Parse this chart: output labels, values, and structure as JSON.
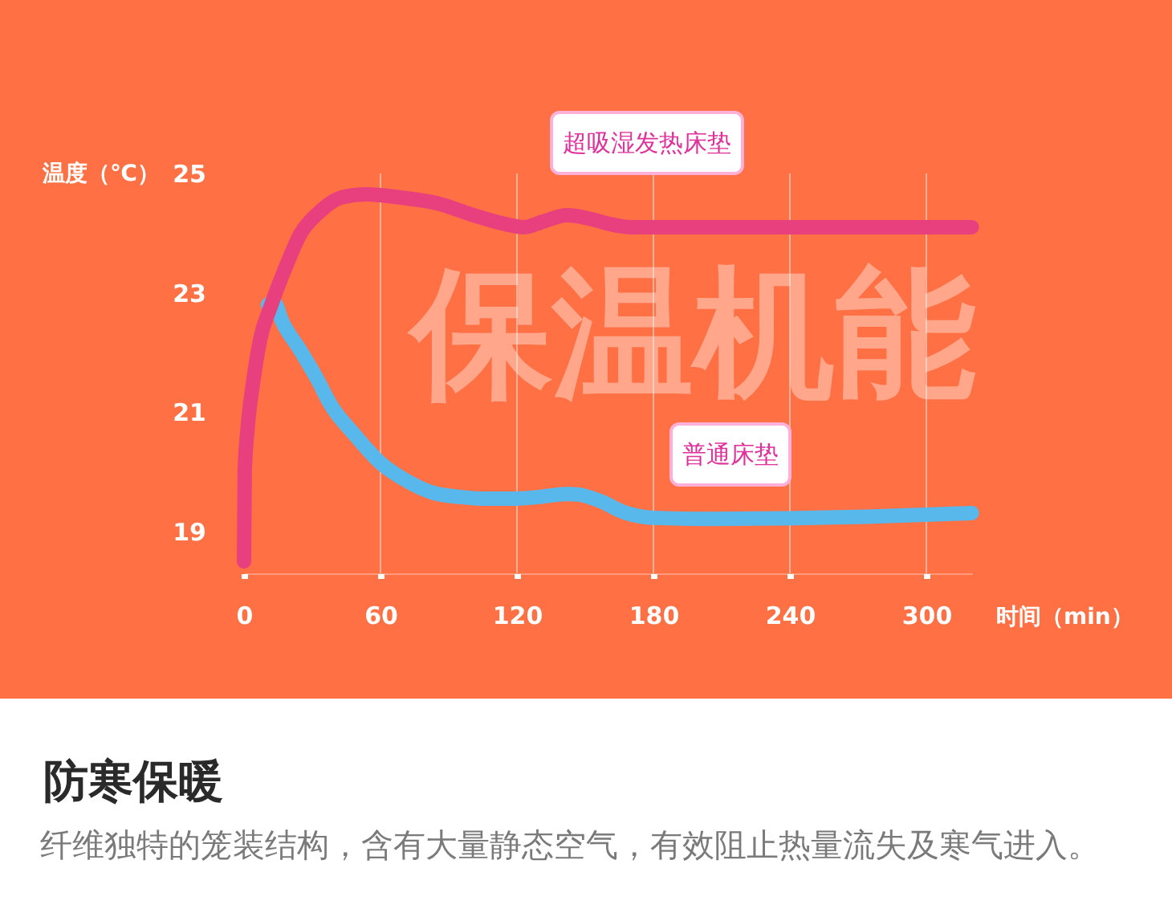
{
  "chart_data": {
    "type": "line",
    "title": "防寒保暖",
    "subtitle": "纤维独特的笼装结构，含有大量静态空气，有效阻止热量流失及寒气进入。",
    "annotations": [
      "保温机能"
    ],
    "xlabel": "时间（min）",
    "ylabel": "温度（℃）",
    "xlim": [
      0,
      320
    ],
    "ylim": [
      18.3,
      25
    ],
    "xticks": [
      0,
      60,
      120,
      180,
      240,
      300
    ],
    "yticks": [
      19,
      21,
      23,
      25
    ],
    "grid": "x",
    "line_style": "solid",
    "series": [
      {
        "name": "超吸湿发热床垫",
        "color": "#e8407f",
        "x": [
          0,
          0.3,
          1.5,
          4,
          7,
          12,
          18,
          25,
          33,
          43,
          54,
          68,
          85,
          101,
          115,
          123,
          132,
          142,
          151,
          161,
          170,
          200,
          260,
          320
        ],
        "values": [
          18.5,
          20.0,
          20.7,
          21.5,
          22.2,
          22.8,
          23.4,
          24.0,
          24.35,
          24.6,
          24.65,
          24.6,
          24.5,
          24.3,
          24.15,
          24.1,
          24.2,
          24.3,
          24.25,
          24.15,
          24.1,
          24.1,
          24.1,
          24.1
        ]
      },
      {
        "name": "普通床垫",
        "color": "#58b8ec",
        "x": [
          10.5,
          13,
          17,
          24.5,
          31.5,
          38.5,
          48,
          60,
          71.5,
          83,
          95,
          107,
          118,
          130,
          142,
          147,
          156,
          168,
          180,
          203,
          238,
          274,
          320
        ],
        "values": [
          22.8,
          22.85,
          22.5,
          22.05,
          21.6,
          21.1,
          20.65,
          20.15,
          19.85,
          19.65,
          19.58,
          19.55,
          19.55,
          19.58,
          19.63,
          19.62,
          19.52,
          19.31,
          19.23,
          19.21,
          19.22,
          19.25,
          19.31
        ]
      }
    ]
  }
}
